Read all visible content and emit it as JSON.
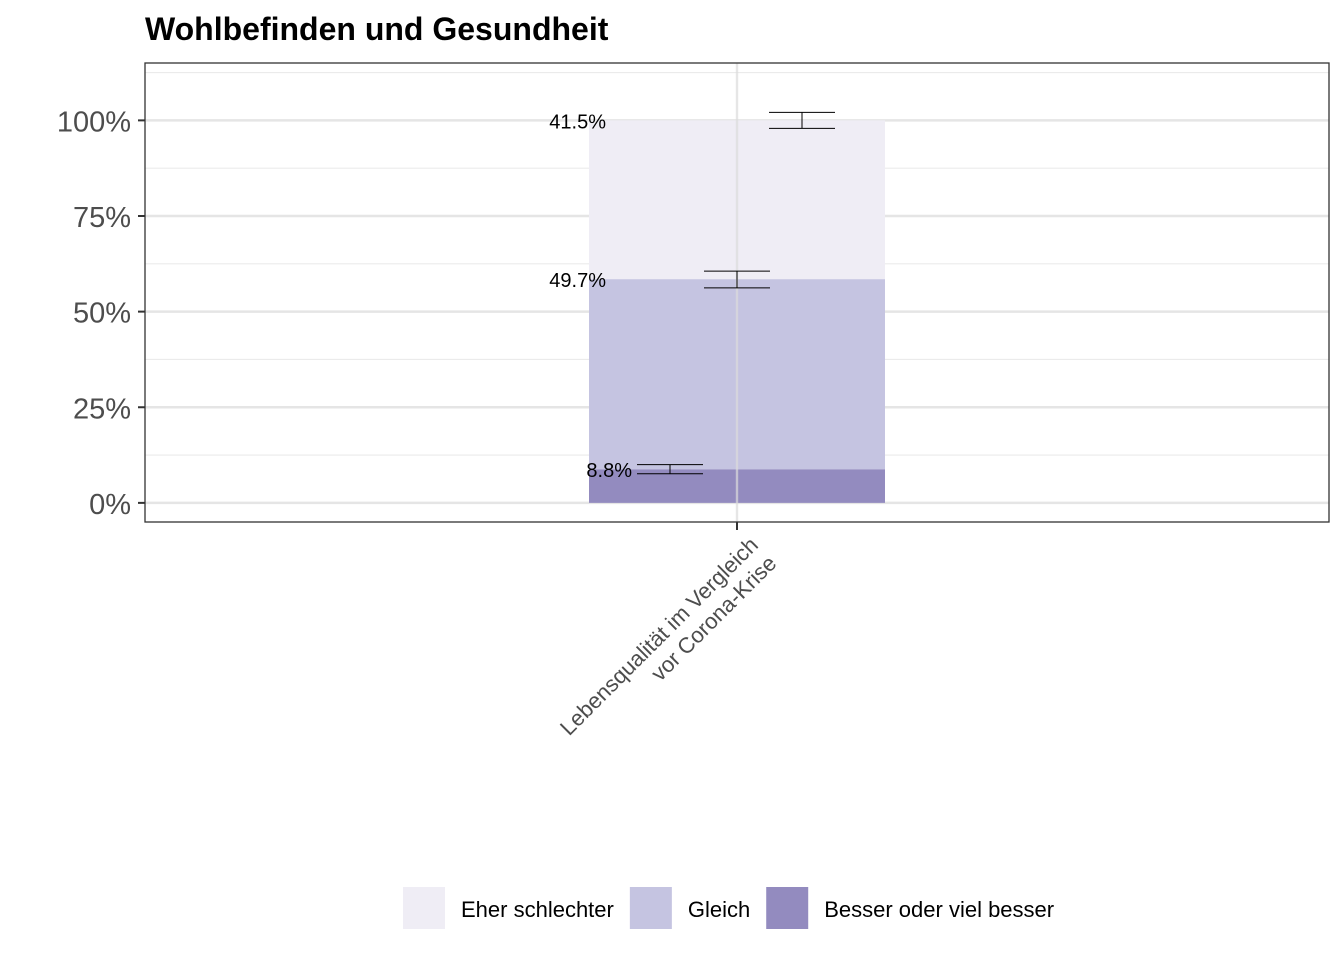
{
  "chart_data": {
    "type": "bar",
    "stacked": true,
    "title": "Wohlbefinden und Gesundheit",
    "xlabel": "",
    "ylabel": "",
    "ylim": [
      -0.05,
      1.15
    ],
    "y_ticks": [
      0,
      0.25,
      0.5,
      0.75,
      1.0
    ],
    "y_tick_labels": [
      "0%",
      "25%",
      "50%",
      "75%",
      "100%"
    ],
    "grid": true,
    "legend_position": "bottom",
    "categories": [
      "Lebensqualität im Vergleich\nvor Corona-Krise"
    ],
    "series": [
      {
        "name": "Besser oder viel besser",
        "color": "#938bbf",
        "values": [
          0.088
        ],
        "label": "8.8%",
        "error_bar": [
          0.076,
          0.1
        ]
      },
      {
        "name": "Gleich",
        "color": "#c5c4e1",
        "values": [
          0.497
        ],
        "label": "49.7%",
        "error_bar": [
          0.562,
          0.606
        ]
      },
      {
        "name": "Eher schlechter",
        "color": "#efedf5",
        "values": [
          0.415
        ],
        "label": "41.5%",
        "error_bar": [
          0.979,
          1.021
        ]
      }
    ],
    "legend_order": [
      "Eher schlechter",
      "Gleich",
      "Besser oder viel besser"
    ]
  }
}
